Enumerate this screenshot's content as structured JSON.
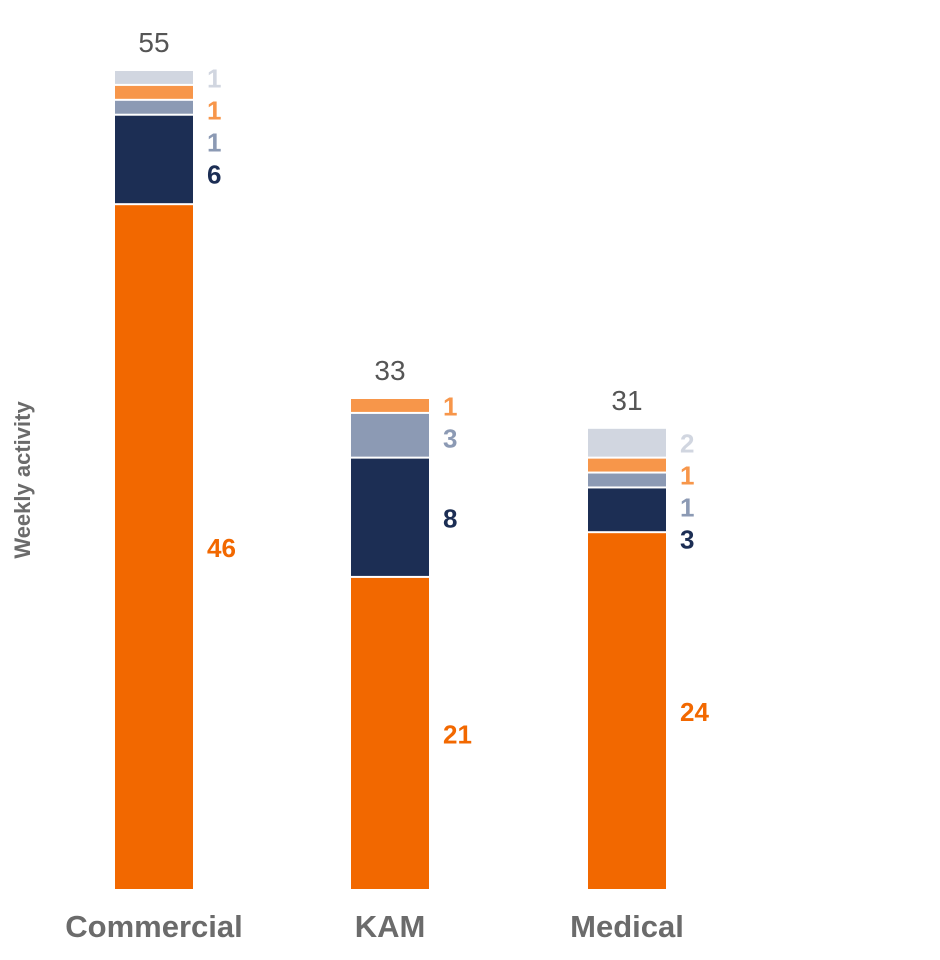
{
  "chart_data": {
    "type": "bar",
    "stacked": true,
    "title": "",
    "xlabel": "",
    "ylabel": "Weekly activity",
    "ylim": [
      0,
      55
    ],
    "grid": false,
    "legend": "none",
    "categories": [
      "Commercial",
      "KAM",
      "Medical"
    ],
    "totals": [
      55,
      33,
      31
    ],
    "series": [
      {
        "color": "#F26800",
        "values": [
          46,
          21,
          24
        ]
      },
      {
        "color": "#1C2E54",
        "values": [
          6,
          8,
          3
        ]
      },
      {
        "color": "#8C9AB4",
        "values": [
          1,
          3,
          1
        ]
      },
      {
        "color": "#F7964A",
        "values": [
          1,
          1,
          1
        ]
      },
      {
        "color": "#D1D6E0",
        "values": [
          1,
          0,
          2
        ]
      }
    ]
  }
}
